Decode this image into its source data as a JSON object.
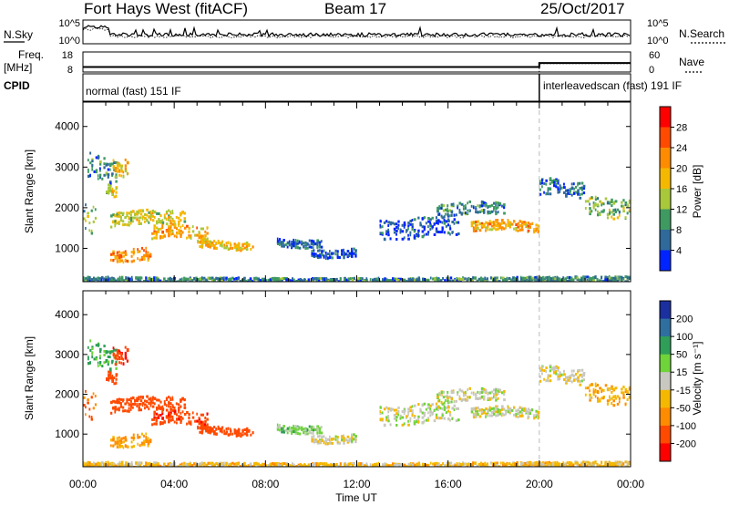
{
  "header": {
    "title": "Fort Hays West (fitACF)",
    "beam": "Beam 17",
    "date": "25/Oct/2017"
  },
  "top_panels": {
    "nsky_label": "N.Sky",
    "nsearch_label": "N.Search",
    "noise_ticks": [
      "10^5",
      "10^0"
    ],
    "freq_label": "Freq.",
    "freq_unit": "[MHz]",
    "freq_ticks": [
      "18",
      "8"
    ],
    "nave_label": "Nave",
    "nave_ticks": [
      "60",
      "0"
    ],
    "cpid_label": "CPID",
    "cpid_segments": [
      "normal (fast) 151 IF",
      "interleavedscan (fast) 191 IF"
    ]
  },
  "axes": {
    "ylabel": "Slant Range [km]",
    "xlabel": "Time UT",
    "x_ticks": [
      "00:00",
      "04:00",
      "08:00",
      "12:00",
      "16:00",
      "20:00",
      "00:00"
    ],
    "y_ticks": [
      "1000",
      "2000",
      "3000",
      "4000"
    ]
  },
  "power_scale": {
    "label": "Power [dB]",
    "ticks": [
      "28",
      "24",
      "20",
      "16",
      "12",
      "8",
      "4"
    ],
    "colors": [
      "#ff0000",
      "#ff4a00",
      "#ff8c00",
      "#f5b800",
      "#a8c83a",
      "#3f9a62",
      "#2f6a9a",
      "#0024ff"
    ]
  },
  "velocity_scale": {
    "label": "Velocity [m s⁻¹]",
    "ticks": [
      "200",
      "100",
      "50",
      "15",
      "-15",
      "-50",
      "-100",
      "-200"
    ],
    "colors": [
      "#1b2f9e",
      "#2e6fa0",
      "#2f9e58",
      "#6fd43a",
      "#c8c8c0",
      "#f5b800",
      "#ff8c00",
      "#ff4a00",
      "#ff0000"
    ]
  },
  "chart_data": {
    "type": "heatmap",
    "title": "Fort Hays West (fitACF)",
    "subtitle": "Beam 17",
    "date": "25/Oct/2017",
    "xlabel": "Time UT",
    "ylabel": "Slant Range [km]",
    "xlim_hours": [
      0,
      24
    ],
    "ylim_km": [
      180,
      4600
    ],
    "cpid_change_hour": 20,
    "frequency_mhz": [
      {
        "start": 0,
        "end": 20,
        "value": 10.5
      },
      {
        "start": 20,
        "end": 24,
        "value": 12.5
      }
    ],
    "nave": [
      {
        "start": 0,
        "end": 20,
        "value": 0
      },
      {
        "start": 20,
        "end": 24,
        "value": 25
      }
    ],
    "echo_regions": [
      {
        "t0": 0.0,
        "t1": 0.6,
        "r0": 1350,
        "r1": 2100,
        "power_db": 14,
        "velocity": -110
      },
      {
        "t0": 0.2,
        "t1": 1.5,
        "r0": 2700,
        "r1": 3300,
        "power_db": 10,
        "velocity": 60
      },
      {
        "t0": 1.0,
        "t1": 1.5,
        "r0": 2300,
        "r1": 2600,
        "power_db": 18,
        "velocity": -150
      },
      {
        "t0": 1.3,
        "t1": 2.0,
        "r0": 2800,
        "r1": 3200,
        "power_db": 20,
        "velocity": -200
      },
      {
        "t0": 1.2,
        "t1": 3.0,
        "r0": 700,
        "r1": 1000,
        "power_db": 24,
        "velocity": -60
      },
      {
        "t0": 1.2,
        "t1": 4.5,
        "r0": 1600,
        "r1": 1950,
        "power_db": 18,
        "velocity": -150
      },
      {
        "t0": 3.0,
        "t1": 5.5,
        "r0": 1250,
        "r1": 1600,
        "power_db": 22,
        "velocity": -180
      },
      {
        "t0": 5.0,
        "t1": 7.5,
        "r0": 1000,
        "r1": 1200,
        "power_db": 20,
        "velocity": -170
      },
      {
        "t0": 8.5,
        "t1": 10.5,
        "r0": 1050,
        "r1": 1250,
        "power_db": 8,
        "velocity": 30
      },
      {
        "t0": 10.0,
        "t1": 12.0,
        "r0": 800,
        "r1": 1000,
        "power_db": 6,
        "velocity": -10
      },
      {
        "t0": 13.0,
        "t1": 16.5,
        "r0": 1300,
        "r1": 1800,
        "power_db": 6,
        "velocity": 0
      },
      {
        "t0": 15.5,
        "t1": 18.5,
        "r0": 1850,
        "r1": 2150,
        "power_db": 10,
        "velocity": 0
      },
      {
        "t0": 17.0,
        "t1": 20.0,
        "r0": 1450,
        "r1": 1700,
        "power_db": 22,
        "velocity": 0
      },
      {
        "t0": 20.0,
        "t1": 22.0,
        "r0": 2300,
        "r1": 2700,
        "power_db": 8,
        "velocity": 0
      },
      {
        "t0": 22.0,
        "t1": 24.0,
        "r0": 1800,
        "r1": 2300,
        "power_db": 14,
        "velocity": -40
      },
      {
        "t0": 0.0,
        "t1": 24.0,
        "r0": 180,
        "r1": 320,
        "power_db": 10,
        "velocity": -30
      }
    ]
  }
}
